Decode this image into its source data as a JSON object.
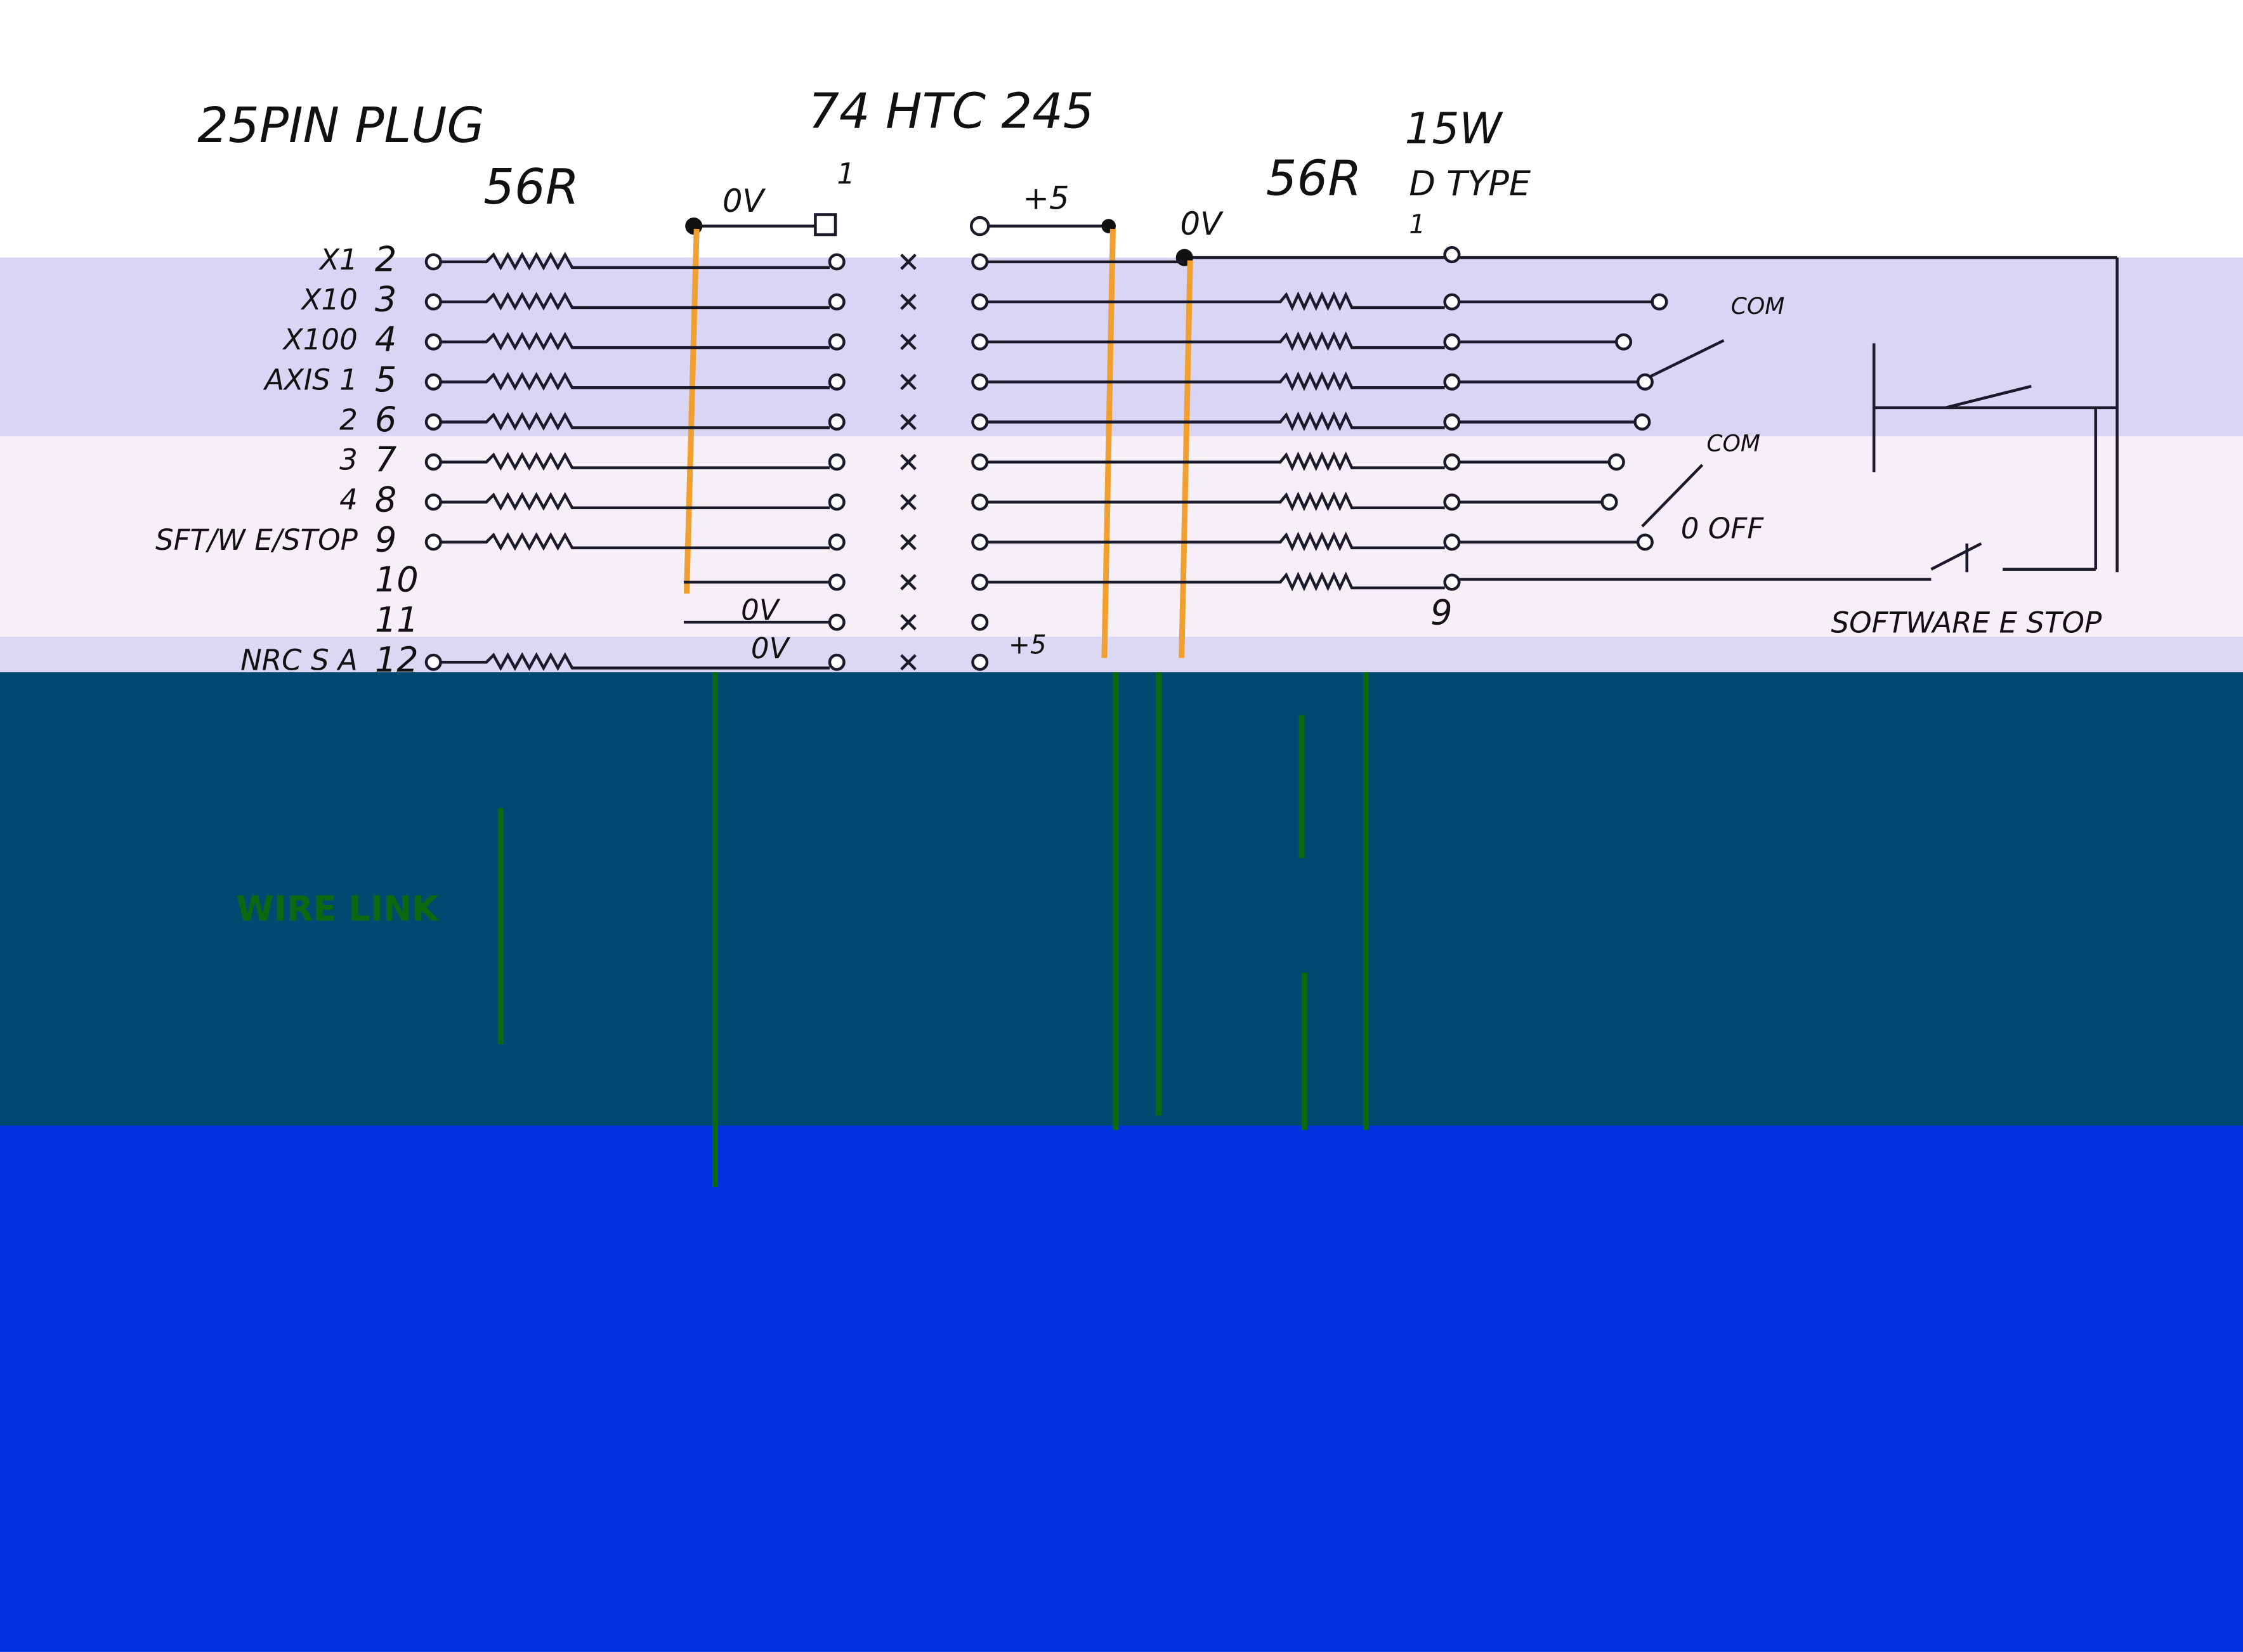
{
  "header": {
    "title": "25PIN PLUG",
    "chip": "74 HTC 245",
    "connector_a": "15W",
    "connector_b": "D TYPE"
  },
  "resistors": {
    "left": "56R",
    "right": "56R"
  },
  "rails": {
    "left_top": "0V",
    "chip_pin": "1",
    "plus_top": "+5",
    "right_top": "0V",
    "mid_0v": "0V",
    "bottom_0v": "0V",
    "bottom_plus": "+5",
    "dtype_pin": "1"
  },
  "pins": [
    {
      "label": "X1",
      "pin": "2"
    },
    {
      "label": "X10",
      "pin": "3"
    },
    {
      "label": "X100",
      "pin": "4"
    },
    {
      "label": "AXIS 1",
      "pin": "5"
    },
    {
      "label": "2",
      "pin": "6"
    },
    {
      "label": "3",
      "pin": "7"
    },
    {
      "label": "4",
      "pin": "8"
    },
    {
      "label": "SFT/W E/STOP",
      "pin": "9"
    },
    {
      "pin": "10"
    },
    {
      "pin": "11"
    },
    {
      "label": "NRC S A",
      "pin": "12"
    }
  ],
  "switches": {
    "com_1": "COM",
    "com_2": "COM",
    "off": "0 OFF",
    "dtype_9": "9",
    "estop": "SOFTWARE E STOP"
  },
  "note": "WIRE LINK"
}
